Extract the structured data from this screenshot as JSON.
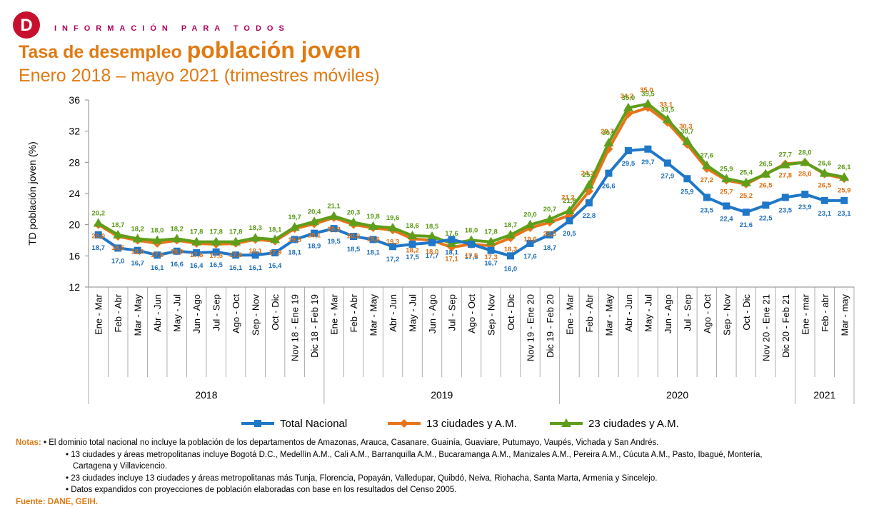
{
  "header": {
    "tagline": "INFORMACIÓN PARA TODOS",
    "title_part1": "Tasa de desempleo ",
    "title_part2": "población joven",
    "subtitle": "Enero 2018 – mayo 2021 (trimestres móviles)",
    "logo_letter": "D",
    "brand_color": "#c8102e"
  },
  "chart_data": {
    "type": "line",
    "title": "Tasa de desempleo población joven",
    "ylabel": "TD población joven (%)",
    "xlabel": "",
    "ylim": [
      12,
      36
    ],
    "yticks": [
      "12",
      "16",
      "20",
      "24",
      "28",
      "32",
      "36"
    ],
    "grid": false,
    "legend_position": "bottom",
    "categories": [
      "Ene - Mar",
      "Feb - Abr",
      "Mar - May",
      "Abr - Jun",
      "May - Jul",
      "Jun - Ago",
      "Jul - Sep",
      "Ago - Oct",
      "Sep - Nov",
      "Oct - Dic",
      "Nov 18 - Ene 19",
      "Dic 18 - Feb 19",
      "Ene - Mar",
      "Feb - Abr",
      "Mar - May",
      "Abr - Jun",
      "May - Jul",
      "Jun - Ago",
      "Jul - Sep",
      "Ago - Oct",
      "Sep - Nov",
      "Oct - Dic",
      "Nov 19 - Ene 20",
      "Dic 19 - Feb 20",
      "Ene - Mar",
      "Feb - Abr",
      "Mar - May",
      "Abr - Jun",
      "May - Jul",
      "Jun - Ago",
      "Jul - Sep",
      "Ago - Oct",
      "Sep - Nov",
      "Oct - Dic",
      "Nov 20 - Ene 21",
      "Dic 20 - Feb 21",
      "Ene - mar",
      "Feb - abr",
      "Mar - may"
    ],
    "year_groups": [
      {
        "label": "2018",
        "count": 12
      },
      {
        "label": "2019",
        "count": 12
      },
      {
        "label": "2020",
        "count": 12
      },
      {
        "label": "2021",
        "count": 3
      }
    ],
    "series": [
      {
        "name": "Total Nacional",
        "color": "#1f77c8",
        "label_color": "#1f6fb8",
        "marker": "square",
        "values": [
          18.7,
          17.0,
          16.7,
          16.1,
          16.6,
          16.4,
          16.5,
          16.1,
          16.1,
          16.4,
          18.1,
          18.9,
          19.5,
          18.5,
          18.1,
          17.2,
          17.5,
          17.7,
          18.1,
          17.5,
          16.7,
          16.0,
          17.6,
          18.7,
          20.5,
          22.8,
          26.6,
          29.5,
          29.7,
          27.9,
          25.9,
          23.5,
          22.4,
          21.6,
          22.5,
          23.5,
          23.9,
          23.1,
          23.1
        ],
        "labels": [
          "18,7",
          "17,0",
          "16,7",
          "16,1",
          "16,6",
          "16,4",
          "16,5",
          "16,1",
          "16,1",
          "16,4",
          "18,1",
          "18,9",
          "19,5",
          "18,5",
          "18,1",
          "17,2",
          "17,5",
          "17,7",
          "18,1",
          "17,5",
          "16,7",
          "16,0",
          "17,6",
          "18,7",
          "20,5",
          "22,8",
          "26,6",
          "29,5",
          "29,7",
          "27,9",
          "25,9",
          "23,5",
          "22,4",
          "21,6",
          "22,5",
          "23,5",
          "23,9",
          "23,1",
          "23,1"
        ]
      },
      {
        "name": "13 ciudades y A.M.",
        "color": "#e8741a",
        "label_color": "#e06f10",
        "marker": "diamond",
        "values": [
          20.0,
          18.5,
          18.0,
          17.6,
          18.0,
          17.6,
          17.5,
          17.6,
          18.1,
          17.9,
          19.5,
          20.1,
          20.9,
          20.0,
          19.6,
          19.3,
          18.2,
          18.0,
          17.1,
          17.5,
          17.3,
          18.3,
          19.6,
          20.3,
          21.2,
          24.3,
          29.7,
          34.2,
          35.0,
          33.1,
          30.3,
          27.2,
          25.7,
          25.2,
          26.5,
          27.8,
          28.0,
          26.5,
          25.9
        ],
        "labels": [
          "20,0",
          "18,5",
          "18,0",
          "17,6",
          "18,0",
          "17,6",
          "17,5",
          "17,6",
          "18,1",
          "17,9",
          "19,5",
          "20,1",
          "20,9",
          "20,0",
          "19,6",
          "19,3",
          "18,2",
          "18,0",
          "17,1",
          "17,5",
          "17,3",
          "18,3",
          "19,6",
          "20,3",
          "21,2",
          "24,3",
          "29,7",
          "34,2",
          "35,0",
          "33,1",
          "30,3",
          "27,2",
          "25,7",
          "25,2",
          "26,5",
          "27,8",
          "28,0",
          "26,5",
          "25,9"
        ]
      },
      {
        "name": "23 ciudades y A.M.",
        "color": "#5e9e1a",
        "label_color": "#5a9a14",
        "marker": "triangle",
        "values": [
          20.2,
          18.7,
          18.2,
          18.0,
          18.2,
          17.8,
          17.8,
          17.8,
          18.3,
          18.1,
          19.7,
          20.4,
          21.1,
          20.3,
          19.8,
          19.6,
          18.6,
          18.5,
          17.6,
          18.0,
          17.8,
          18.7,
          20.0,
          20.7,
          21.8,
          25.1,
          30.5,
          35.0,
          35.5,
          33.5,
          30.7,
          27.6,
          25.9,
          25.4,
          26.5,
          27.7,
          28.0,
          26.6,
          26.1
        ],
        "labels": [
          "20,2",
          "18,7",
          "18,2",
          "18,0",
          "18,2",
          "17,8",
          "17,8",
          "17,8",
          "18,3",
          "18,1",
          "19,7",
          "20,4",
          "21,1",
          "20,3",
          "19,8",
          "19,6",
          "18,6",
          "18,5",
          "17,6",
          "18,0",
          "17,8",
          "18,7",
          "20,0",
          "20,7",
          "21,8",
          "25,1",
          "30,5",
          "35,0",
          "35,5",
          "33,5",
          "30,7",
          "27,6",
          "25,9",
          "25,4",
          "26,5",
          "27,7",
          "28,0",
          "26,6",
          "26,1"
        ]
      }
    ]
  },
  "notes": {
    "heading": "Notas:",
    "items": [
      "• El dominio total nacional no incluye la población de los departamentos de Amazonas, Arauca, Casanare, Guainía, Guaviare, Putumayo, Vaupés, Vichada y San Andrés.",
      "• 13 ciudades y áreas metropolitanas incluye Bogotá D.C., Medellín A.M., Cali A.M., Barranquilla A.M., Bucaramanga A.M., Manizales A.M., Pereira A.M., Cúcuta A.M., Pasto, Ibagué, Montería,",
      "Cartagena y Villavicencio.",
      "• 23 ciudades incluye 13 ciudades y áreas metropolitanas más Tunja, Florencia, Popayán, Valledupar, Quibdó, Neiva, Riohacha, Santa Marta, Armenia y Sincelejo.",
      "• Datos expandidos con proyecciones de población elaboradas con base en los resultados del Censo 2005."
    ],
    "source": "Fuente: DANE, GEIH."
  }
}
